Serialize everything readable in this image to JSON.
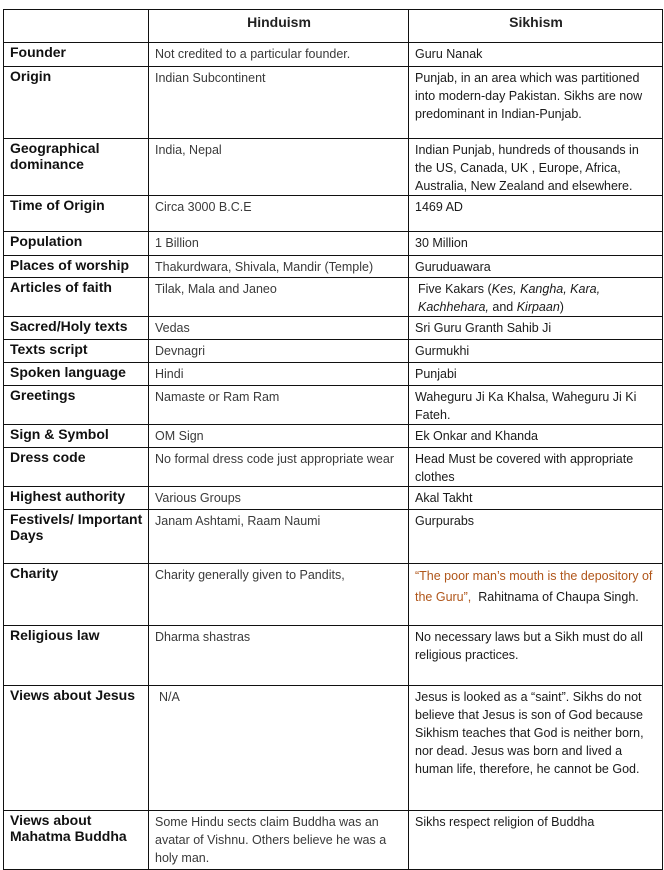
{
  "header": {
    "col1": "Hinduism",
    "col2": "Sikhism"
  },
  "quote_color": "#b0561a",
  "rows": [
    {
      "label": "Founder",
      "hinduism": "Not credited to a particular founder.",
      "sikhism": "Guru Nanak"
    },
    {
      "label": "Origin",
      "hinduism": "Indian Subcontinent",
      "sikhism": "Punjab, in an area which was partitioned into modern-day Pakistan. Sikhs are now predominant in Indian-Punjab."
    },
    {
      "label": "Geographical dominance",
      "hinduism": "India, Nepal",
      "sikhism": "Indian Punjab, hundreds of thousands in the US, Canada, UK , Europe, Africa, Australia, New Zealand and elsewhere."
    },
    {
      "label": "Time of Origin",
      "hinduism": "Circa 3000 B.C.E",
      "sikhism": "1469 AD"
    },
    {
      "label": "Population",
      "hinduism": "1 Billion",
      "sikhism": "30 Million"
    },
    {
      "label": "Places of worship",
      "hinduism": "Thakurdwara, Shivala, Mandir (Temple)",
      "sikhism": "Guruduawara"
    },
    {
      "label": "Articles of faith",
      "hinduism": "Tilak, Mala and Janeo",
      "sikhism_prefix": "Five Kakars (",
      "sikhism_items": "Kes, Kangha, Kara, Kachhehara,",
      "sikhism_and": " and ",
      "sikhism_last": "Kirpaan",
      "sikhism_suffix": ")"
    },
    {
      "label": "Sacred/Holy texts",
      "hinduism": "Vedas",
      "sikhism": "Sri Guru Granth Sahib Ji"
    },
    {
      "label": "Texts script",
      "hinduism": "Devnagri",
      "sikhism": "Gurmukhi"
    },
    {
      "label": "Spoken language",
      "hinduism": "Hindi",
      "sikhism": "Punjabi"
    },
    {
      "label": "Greetings",
      "hinduism": "Namaste or Ram Ram",
      "sikhism": "Waheguru Ji Ka Khalsa, Waheguru Ji Ki Fateh."
    },
    {
      "label": "Sign & Symbol",
      "hinduism": "OM Sign",
      "sikhism": "Ek Onkar and Khanda"
    },
    {
      "label": "Dress code",
      "hinduism": "No formal dress code just appropriate wear",
      "sikhism": "Head Must be covered with appropriate clothes"
    },
    {
      "label": "Highest authority",
      "hinduism": "Various Groups",
      "sikhism": "Akal Takht"
    },
    {
      "label": "Festivels/ Important Days",
      "hinduism": "Janam Ashtami, Raam Naumi",
      "sikhism": "Gurpurabs"
    },
    {
      "label": "Charity",
      "hinduism": "Charity generally given to Pandits,",
      "sikhism_quote": "“The poor man’s mouth is the depository of the Guru”,",
      "sikhism_source": "Rahitnama of Chaupa Singh."
    },
    {
      "label": "Religious law",
      "hinduism": "Dharma shastras",
      "sikhism": "No necessary laws but a Sikh must do all religious practices."
    },
    {
      "label": "Views about Jesus",
      "hinduism": "N/A",
      "sikhism": "Jesus is looked as a “saint”. Sikhs do not believe that Jesus is son of God because Sikhism teaches that God is neither born, nor dead. Jesus was born and lived a human life, therefore, he cannot be God."
    },
    {
      "label": "Views about Mahatma Buddha",
      "hinduism": "Some Hindu sects claim Buddha was an avatar of Vishnu. Others believe he was a holy man.",
      "sikhism": "Sikhs respect religion of Buddha"
    }
  ]
}
